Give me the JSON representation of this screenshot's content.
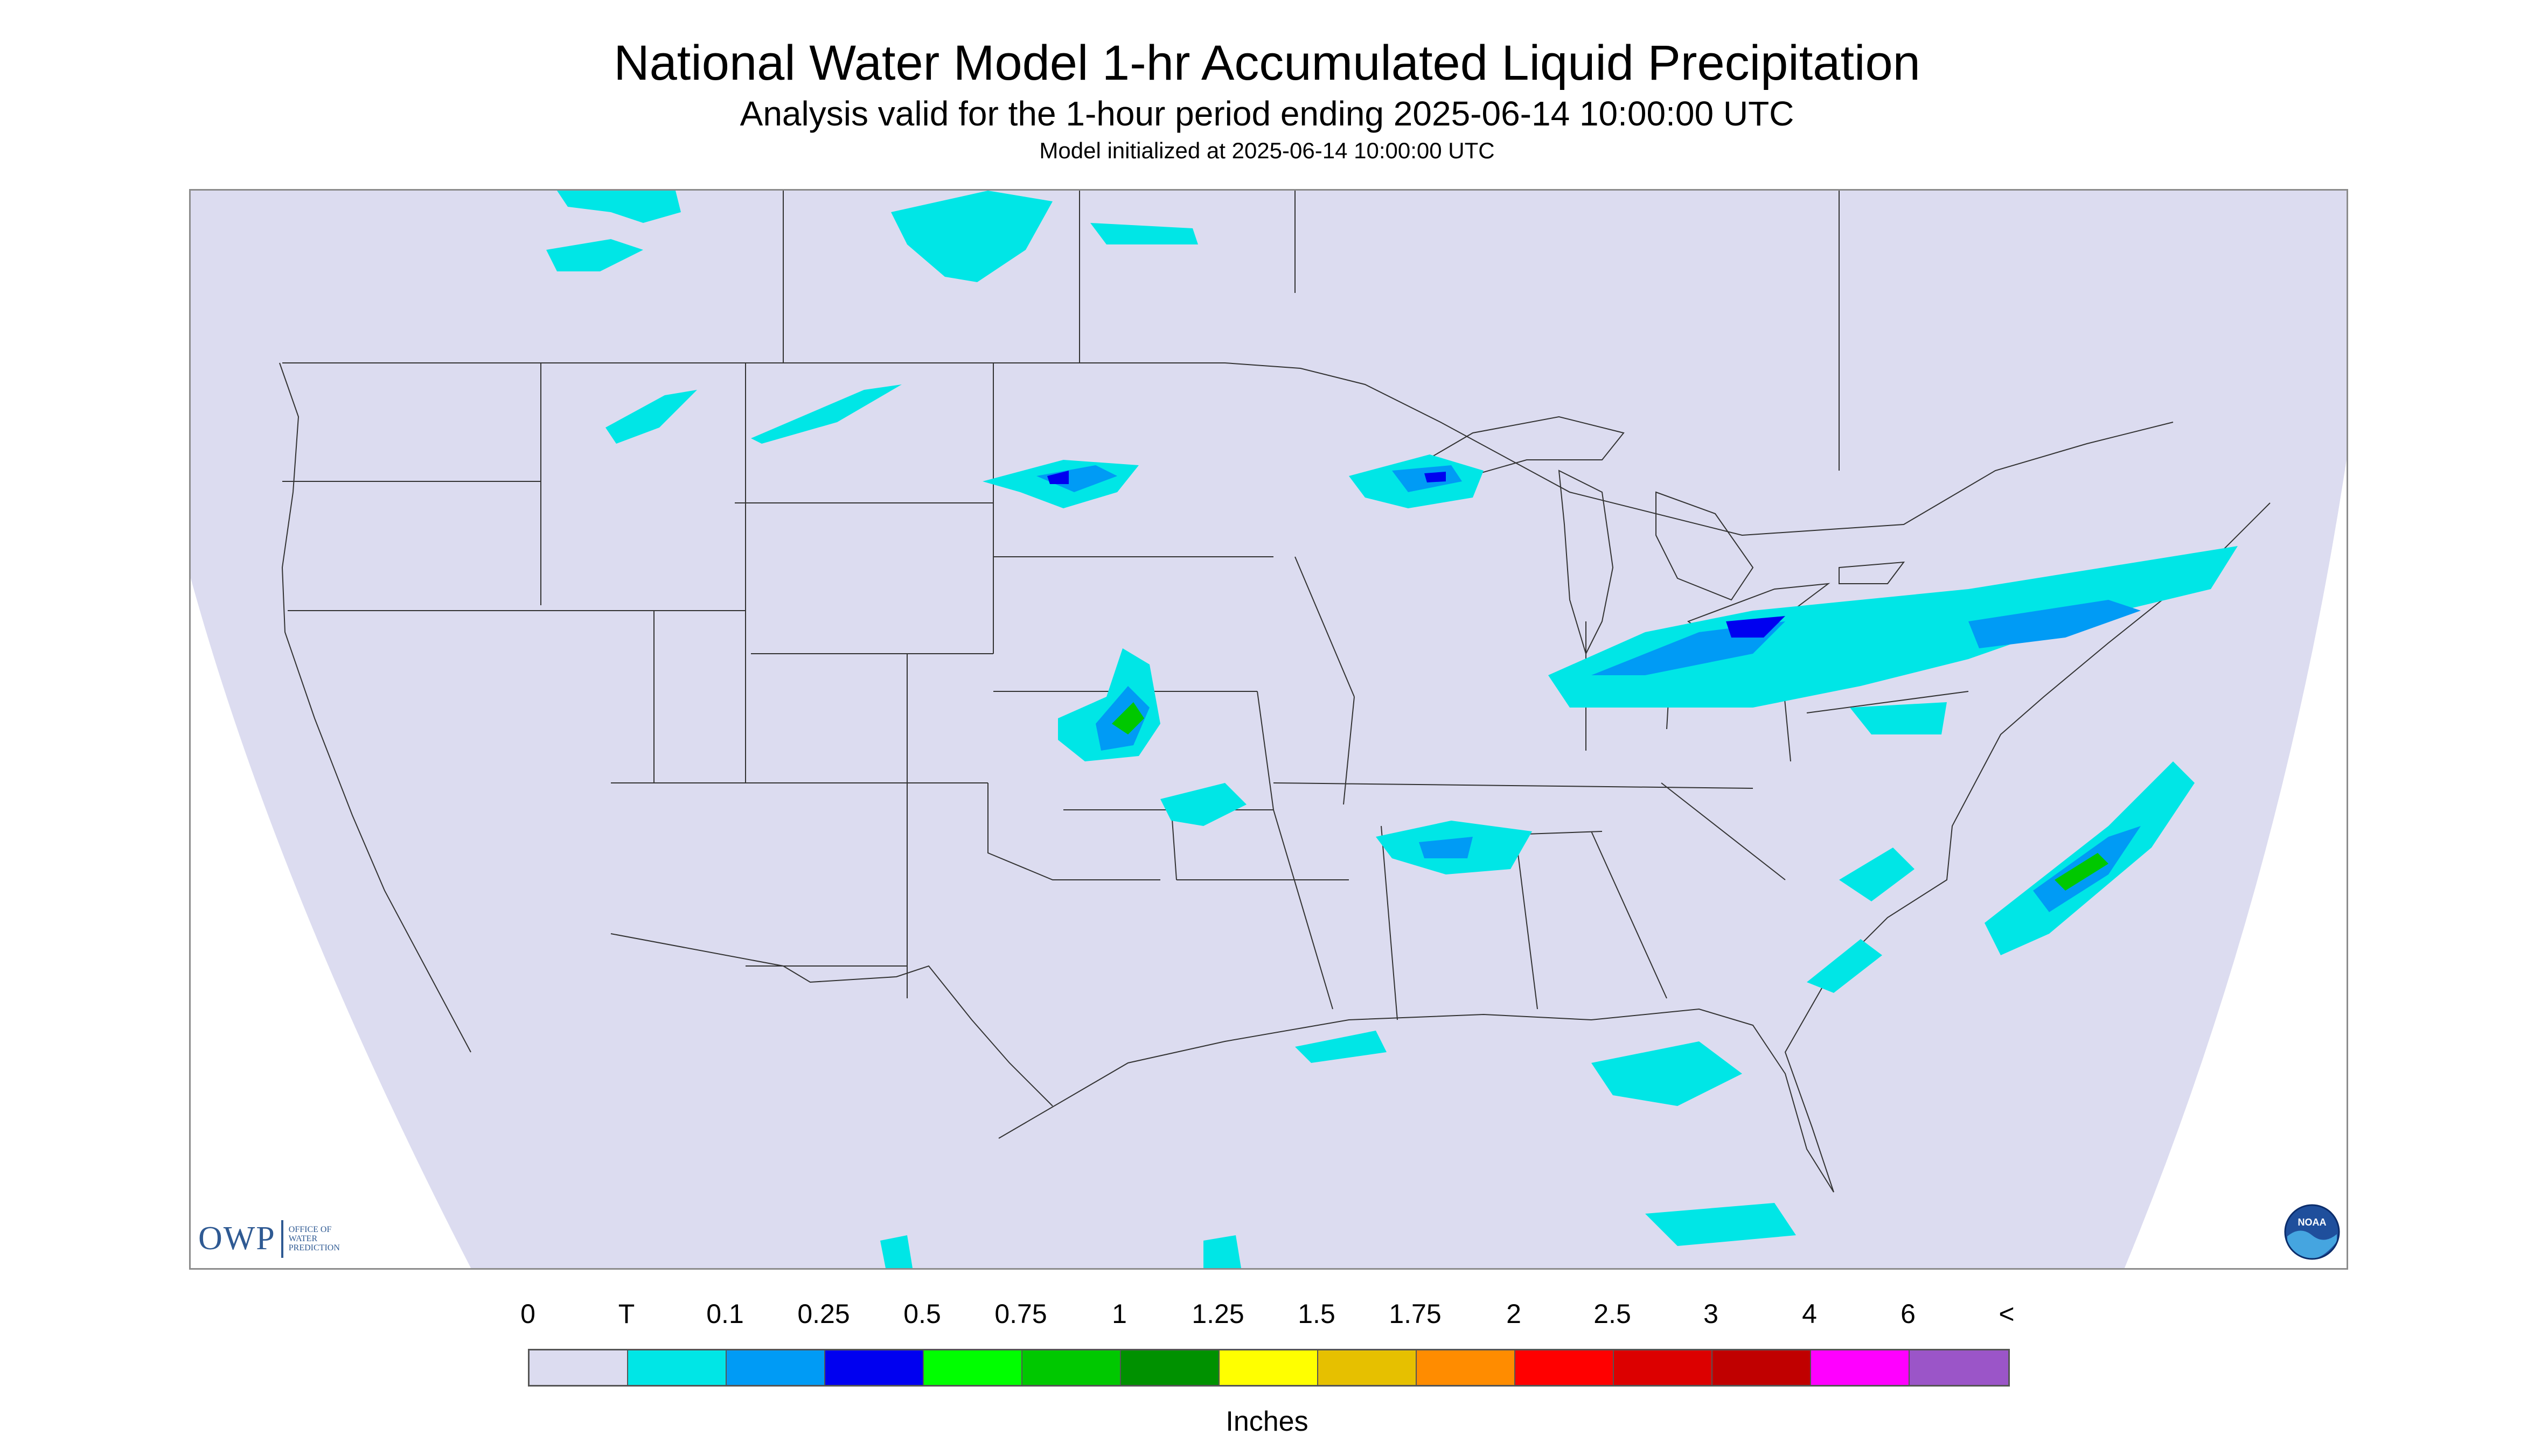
{
  "header": {
    "title": "National Water Model 1-hr Accumulated Liquid Precipitation",
    "subtitle": "Analysis valid for the 1-hour period ending 2025-06-14 10:00:00 UTC",
    "init_line": "Model initialized at 2025-06-14 10:00:00 UTC"
  },
  "logos": {
    "owp_mark": "OWP",
    "owp_text_lines": [
      "OFFICE OF",
      "WATER",
      "PREDICTION"
    ],
    "noaa_mark": "NOAA"
  },
  "legend": {
    "labels": [
      "0",
      "T",
      "0.1",
      "0.25",
      "0.5",
      "0.75",
      "1",
      "1.25",
      "1.5",
      "1.75",
      "2",
      "2.5",
      "3",
      "4",
      "6",
      "<"
    ],
    "colors": [
      "#dcdcf0",
      "#00e6e6",
      "#009bf5",
      "#0000f0",
      "#00ff00",
      "#00c800",
      "#009100",
      "#ffff00",
      "#e6c000",
      "#ff8c00",
      "#ff0000",
      "#dc0000",
      "#c00000",
      "#ff00ff",
      "#9b55c8"
    ],
    "units": "Inches"
  },
  "map": {
    "background_color": "#dcdcf0",
    "outside_color": "#ffffff",
    "boundary_color": "#333333",
    "precip_colors": {
      "trace": "#00e6e6",
      "light": "#009bf5",
      "moderate": "#0000f0",
      "heavy": "#00c800"
    }
  }
}
